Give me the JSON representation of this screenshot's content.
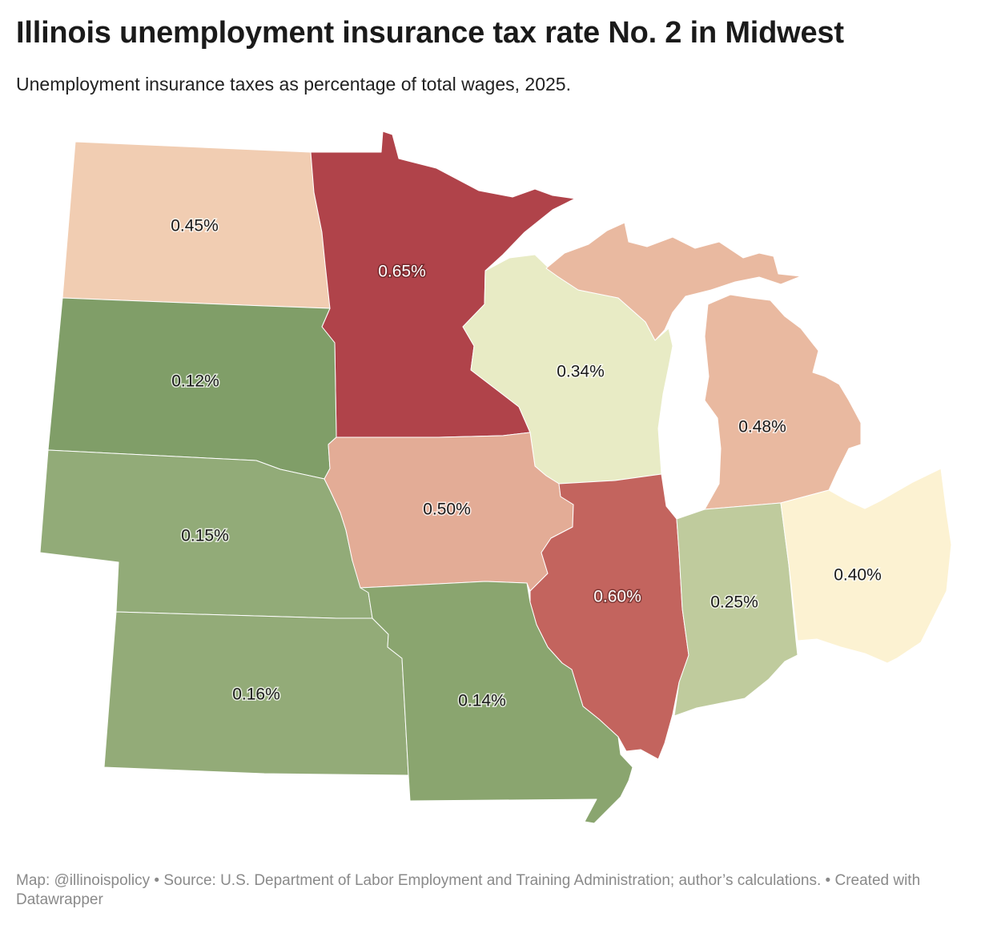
{
  "header": {
    "title": "Illinois unemployment insurance tax rate No. 2 in Midwest",
    "subtitle": "Unemployment insurance taxes as percentage of total wages, 2025."
  },
  "map": {
    "states": [
      {
        "id": "north-dakota",
        "label": "0.45%",
        "value": 0.45,
        "color": "#f1cdb2"
      },
      {
        "id": "minnesota",
        "label": "0.65%",
        "value": 0.65,
        "color": "#b0434a"
      },
      {
        "id": "wisconsin",
        "label": "0.34%",
        "value": 0.34,
        "color": "#e8ebc5"
      },
      {
        "id": "michigan",
        "label": "0.48%",
        "value": 0.48,
        "color": "#e9b9a0"
      },
      {
        "id": "south-dakota",
        "label": "0.12%",
        "value": 0.12,
        "color": "#809e68"
      },
      {
        "id": "nebraska",
        "label": "0.15%",
        "value": 0.15,
        "color": "#92ab78"
      },
      {
        "id": "iowa",
        "label": "0.50%",
        "value": 0.5,
        "color": "#e3ac96"
      },
      {
        "id": "illinois",
        "label": "0.60%",
        "value": 0.6,
        "color": "#c3645e"
      },
      {
        "id": "indiana",
        "label": "0.25%",
        "value": 0.25,
        "color": "#bfcb9d"
      },
      {
        "id": "ohio",
        "label": "0.40%",
        "value": 0.4,
        "color": "#fcf2d2"
      },
      {
        "id": "kansas",
        "label": "0.16%",
        "value": 0.16,
        "color": "#93ab78"
      },
      {
        "id": "missouri",
        "label": "0.14%",
        "value": 0.14,
        "color": "#8aa56f"
      }
    ]
  },
  "footer": {
    "credit": "Map: @illinoispolicy • Source: U.S. Department of Labor Employment and Training Administration; author’s calculations. • Created with Datawrapper"
  }
}
